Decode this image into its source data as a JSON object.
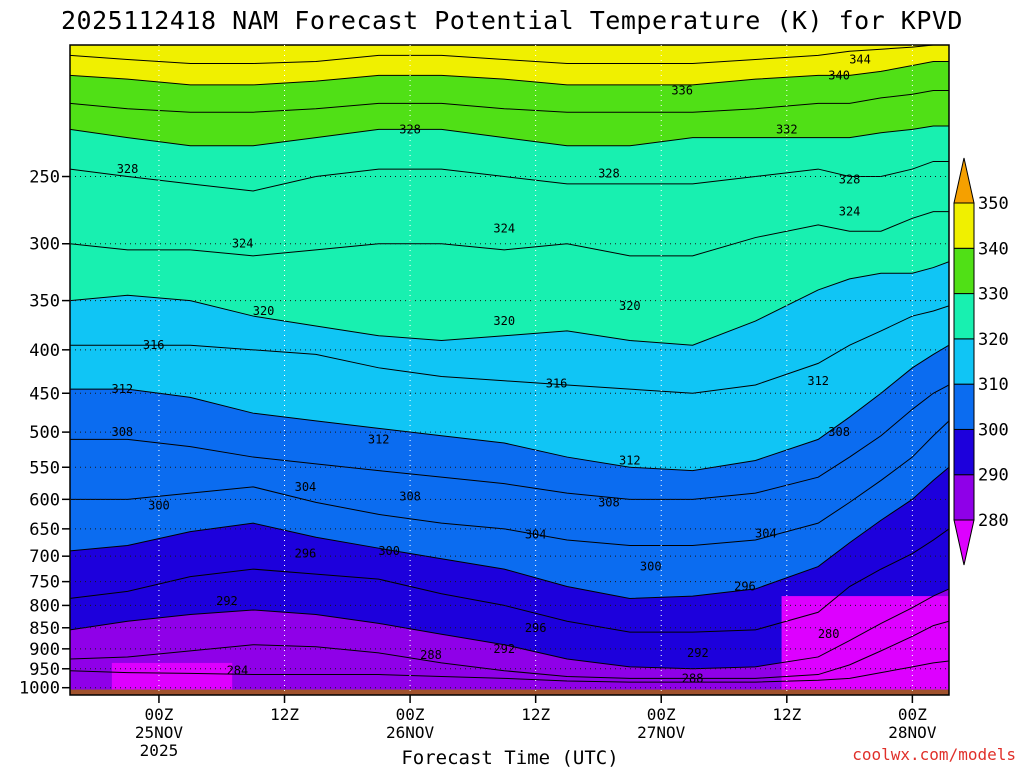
{
  "chart_data": {
    "type": "heatmap",
    "title": "2025112418 NAM Forecast Potential Temperature (K) for KPVD",
    "xlabel": "Forecast Time (UTC)",
    "ylabel": "",
    "y_scale": "log-pressure",
    "y_axis_inverted": true,
    "ylim_hPa": [
      1020,
      175
    ],
    "xlim_hours_from_25NOV00Z": [
      -8.5,
      75.5
    ],
    "y_ticks": [
      250,
      300,
      350,
      400,
      450,
      500,
      550,
      600,
      650,
      700,
      750,
      800,
      850,
      900,
      950,
      1000
    ],
    "x_ticks": [
      {
        "hour": 0,
        "label": "00Z",
        "date": "25NOV",
        "year": "2025"
      },
      {
        "hour": 12,
        "label": "12Z",
        "date": "",
        "year": ""
      },
      {
        "hour": 24,
        "label": "00Z",
        "date": "26NOV",
        "year": ""
      },
      {
        "hour": 36,
        "label": "12Z",
        "date": "",
        "year": ""
      },
      {
        "hour": 48,
        "label": "00Z",
        "date": "27NOV",
        "year": ""
      },
      {
        "hour": 60,
        "label": "12Z",
        "date": "",
        "year": ""
      },
      {
        "hour": 72,
        "label": "00Z",
        "date": "28NOV",
        "year": ""
      }
    ],
    "grid": "dotted",
    "colorbar": {
      "position": "right",
      "levels": [
        280,
        290,
        300,
        310,
        320,
        330,
        340,
        350
      ],
      "labels": [
        "280",
        "290",
        "300",
        "310",
        "320",
        "330",
        "340",
        "350"
      ],
      "colors": [
        "#dd00ff",
        "#8f00e8",
        "#1d00dc",
        "#0b6cf0",
        "#10c5f5",
        "#18f0b0",
        "#50e016",
        "#f0f000",
        "#f5a000"
      ],
      "extend": "both"
    },
    "isentropes": [
      {
        "theta": 284,
        "p": [
          955,
          960,
          962,
          965,
          965,
          965,
          970,
          975,
          982,
          985,
          985,
          985,
          980,
          975,
          960,
          945,
          935,
          930
        ]
      },
      {
        "theta": 288,
        "p": [
          925,
          920,
          905,
          890,
          895,
          910,
          935,
          955,
          970,
          975,
          975,
          975,
          965,
          940,
          905,
          870,
          845,
          835
        ]
      },
      {
        "theta": 292,
        "p": [
          855,
          835,
          820,
          810,
          820,
          840,
          865,
          890,
          925,
          945,
          950,
          945,
          920,
          880,
          840,
          805,
          780,
          765
        ]
      },
      {
        "theta": 296,
        "p": [
          785,
          770,
          740,
          725,
          735,
          745,
          775,
          800,
          835,
          860,
          860,
          855,
          815,
          760,
          725,
          695,
          670,
          650
        ]
      },
      {
        "theta": 300,
        "p": [
          690,
          680,
          655,
          640,
          665,
          685,
          705,
          725,
          760,
          785,
          780,
          765,
          720,
          675,
          635,
          600,
          570,
          550
        ]
      },
      {
        "theta": 304,
        "p": [
          600,
          600,
          590,
          580,
          605,
          625,
          640,
          650,
          670,
          680,
          680,
          670,
          640,
          605,
          570,
          535,
          505,
          485
        ]
      },
      {
        "theta": 308,
        "p": [
          510,
          510,
          520,
          535,
          545,
          555,
          565,
          575,
          590,
          600,
          600,
          590,
          565,
          535,
          505,
          470,
          450,
          440
        ]
      },
      {
        "theta": 312,
        "p": [
          445,
          445,
          455,
          475,
          485,
          495,
          505,
          515,
          535,
          550,
          555,
          540,
          510,
          480,
          450,
          420,
          405,
          395
        ]
      },
      {
        "theta": 316,
        "p": [
          395,
          395,
          395,
          400,
          405,
          420,
          430,
          435,
          440,
          445,
          450,
          440,
          415,
          395,
          380,
          365,
          360,
          355
        ]
      },
      {
        "theta": 320,
        "p": [
          350,
          345,
          350,
          365,
          375,
          385,
          390,
          385,
          380,
          390,
          395,
          370,
          340,
          330,
          325,
          325,
          320,
          315
        ]
      },
      {
        "theta": 324,
        "p": [
          300,
          305,
          305,
          310,
          305,
          300,
          300,
          305,
          300,
          310,
          310,
          295,
          285,
          290,
          290,
          280,
          275,
          275
        ]
      },
      {
        "theta": 328,
        "p": [
          245,
          250,
          255,
          260,
          250,
          245,
          245,
          250,
          255,
          255,
          255,
          250,
          245,
          250,
          250,
          245,
          240,
          240
        ]
      },
      {
        "theta": 332,
        "p": [
          220,
          225,
          230,
          230,
          225,
          220,
          220,
          225,
          230,
          230,
          225,
          225,
          225,
          225,
          222,
          220,
          218,
          218
        ]
      },
      {
        "theta": 336,
        "p": [
          205,
          208,
          210,
          210,
          208,
          205,
          205,
          208,
          210,
          210,
          210,
          208,
          205,
          205,
          202,
          200,
          198,
          198
        ]
      },
      {
        "theta": 340,
        "p": [
          190,
          192,
          195,
          195,
          193,
          190,
          190,
          192,
          195,
          195,
          195,
          192,
          190,
          190,
          188,
          185,
          183,
          183
        ]
      },
      {
        "theta": 344,
        "p": [
          180,
          182,
          184,
          184,
          183,
          180,
          180,
          182,
          184,
          184,
          184,
          182,
          180,
          178,
          177,
          176,
          175,
          175
        ]
      }
    ],
    "isentrope_hours": [
      -8.5,
      -3,
      3,
      9,
      15,
      21,
      27,
      33,
      39,
      45,
      51,
      57,
      63,
      66,
      69,
      72,
      74,
      75.5
    ],
    "contour_labels": [
      {
        "text": "344",
        "hour": 67,
        "p": 182
      },
      {
        "text": "340",
        "hour": 65,
        "p": 190
      },
      {
        "text": "336",
        "hour": 50,
        "p": 198
      },
      {
        "text": "332",
        "hour": 60,
        "p": 220
      },
      {
        "text": "328",
        "hour": 24,
        "p": 220
      },
      {
        "text": "328",
        "hour": -3,
        "p": 245
      },
      {
        "text": "328",
        "hour": 43,
        "p": 248
      },
      {
        "text": "328",
        "hour": 66,
        "p": 252
      },
      {
        "text": "324",
        "hour": 66,
        "p": 275
      },
      {
        "text": "324",
        "hour": 8,
        "p": 300
      },
      {
        "text": "324",
        "hour": 33,
        "p": 288
      },
      {
        "text": "320",
        "hour": 10,
        "p": 360
      },
      {
        "text": "320",
        "hour": 33,
        "p": 370
      },
      {
        "text": "320",
        "hour": 45,
        "p": 355
      },
      {
        "text": "316",
        "hour": -0.5,
        "p": 395
      },
      {
        "text": "316",
        "hour": 38,
        "p": 438
      },
      {
        "text": "312",
        "hour": -3.5,
        "p": 445
      },
      {
        "text": "312",
        "hour": 21,
        "p": 510
      },
      {
        "text": "312",
        "hour": 45,
        "p": 540
      },
      {
        "text": "312",
        "hour": 63,
        "p": 435
      },
      {
        "text": "308",
        "hour": -3.5,
        "p": 500
      },
      {
        "text": "308",
        "hour": 65,
        "p": 500
      },
      {
        "text": "308",
        "hour": 24,
        "p": 595
      },
      {
        "text": "308",
        "hour": 43,
        "p": 605
      },
      {
        "text": "304",
        "hour": 14,
        "p": 580
      },
      {
        "text": "304",
        "hour": 36,
        "p": 660
      },
      {
        "text": "304",
        "hour": 58,
        "p": 658
      },
      {
        "text": "300",
        "hour": 0,
        "p": 610
      },
      {
        "text": "300",
        "hour": 22,
        "p": 690
      },
      {
        "text": "300",
        "hour": 47,
        "p": 720
      },
      {
        "text": "296",
        "hour": 14,
        "p": 695
      },
      {
        "text": "296",
        "hour": 36,
        "p": 850
      },
      {
        "text": "296",
        "hour": 56,
        "p": 760
      },
      {
        "text": "292",
        "hour": 6.5,
        "p": 790
      },
      {
        "text": "292",
        "hour": 33,
        "p": 900
      },
      {
        "text": "292",
        "hour": 51.5,
        "p": 910
      },
      {
        "text": "288",
        "hour": 26,
        "p": 915
      },
      {
        "text": "288",
        "hour": 51,
        "p": 975
      },
      {
        "text": "284",
        "hour": 7.5,
        "p": 955
      },
      {
        "text": "280",
        "hour": 64,
        "p": 865
      }
    ],
    "warm_pockets_280": [
      {
        "from_hour": -4.5,
        "to_hour": 7,
        "top_p": 935
      },
      {
        "from_hour": 59.5,
        "to_hour": 75.5,
        "top_p": 780
      }
    ],
    "ground_p": 1005,
    "ground_color": "#a0522d"
  },
  "credit": "coolwx.com/models"
}
